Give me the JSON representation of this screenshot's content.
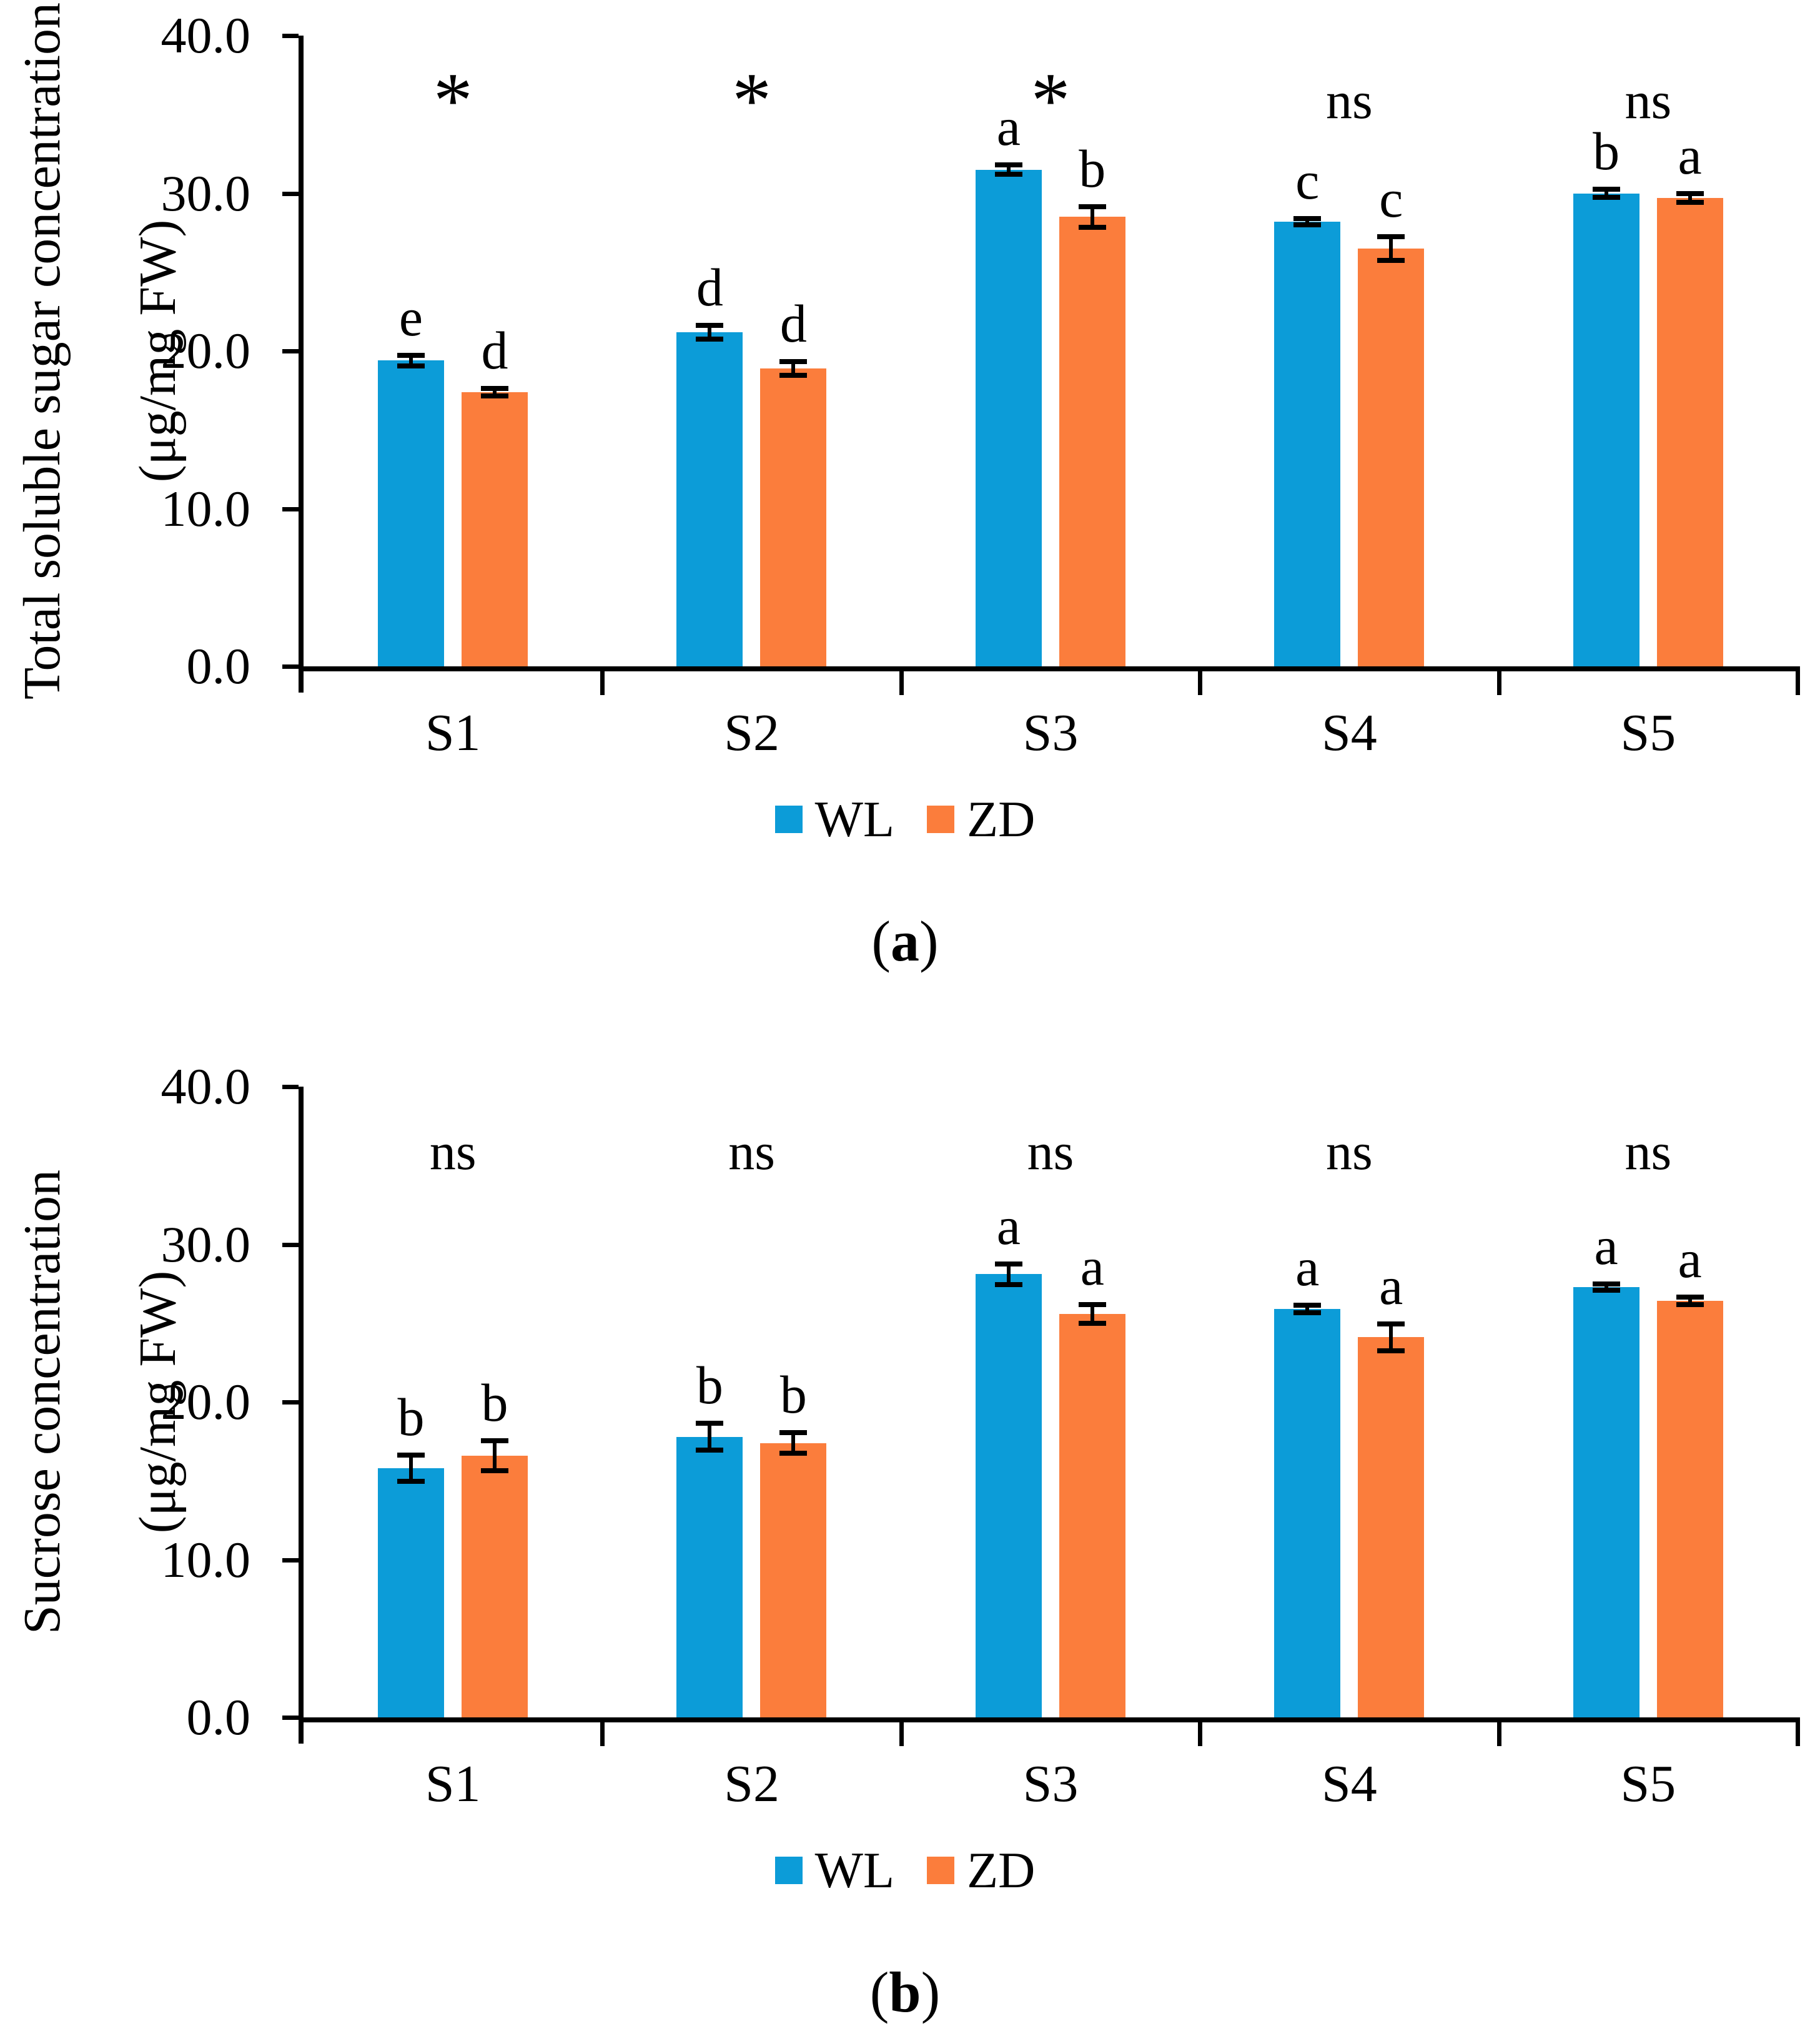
{
  "colors": {
    "wl_blue": "#0c9cd8",
    "zd_orange": "#fb7d3c",
    "axis_black": "#000000",
    "background": "#ffffff"
  },
  "figure_labels": {
    "panel_a": {
      "open": "(",
      "letter": "a",
      "close": ")"
    },
    "panel_b": {
      "open": "(",
      "letter": "b",
      "close": ")"
    }
  },
  "chart_data": [
    {
      "panel": "a",
      "type": "bar",
      "ylabel": "Total soluble sugar concentration",
      "ylabel_units": "(μg/mg FW)",
      "categories": [
        "S1",
        "S2",
        "S3",
        "S4",
        "S5"
      ],
      "ylim": [
        0,
        40
      ],
      "ytick_labels": [
        "0.0",
        "10.0",
        "20.0",
        "30.0",
        "40.0"
      ],
      "grid": false,
      "legend_position": "bottom",
      "series": [
        {
          "name": "WL",
          "color": "#0c9cd8",
          "values": [
            19.4,
            21.2,
            31.5,
            28.2,
            30.0
          ],
          "errors": [
            0.5,
            0.6,
            0.45,
            0.35,
            0.4
          ],
          "letters": [
            "e",
            "d",
            "a",
            "c",
            "b"
          ]
        },
        {
          "name": "ZD",
          "color": "#fb7d3c",
          "values": [
            17.4,
            18.9,
            28.5,
            26.5,
            29.7
          ],
          "errors": [
            0.4,
            0.6,
            0.8,
            0.9,
            0.45
          ],
          "letters": [
            "d",
            "d",
            "b",
            "c",
            "a"
          ]
        }
      ],
      "significance_by_group": [
        "*",
        "*",
        "*",
        "ns",
        "ns"
      ]
    },
    {
      "panel": "b",
      "type": "bar",
      "ylabel": "Sucrose concentration",
      "ylabel_units": "(μg/mg FW)",
      "categories": [
        "S1",
        "S2",
        "S3",
        "S4",
        "S5"
      ],
      "ylim": [
        0,
        40
      ],
      "ytick_labels": [
        "0.0",
        "10.0",
        "20.0",
        "30.0",
        "40.0"
      ],
      "grid": false,
      "legend_position": "bottom",
      "series": [
        {
          "name": "WL",
          "color": "#0c9cd8",
          "values": [
            15.8,
            17.8,
            28.1,
            25.9,
            27.3
          ],
          "errors": [
            1.0,
            1.0,
            0.8,
            0.4,
            0.35
          ],
          "letters": [
            "b",
            "b",
            "a",
            "a",
            "a"
          ]
        },
        {
          "name": "ZD",
          "color": "#fb7d3c",
          "values": [
            16.6,
            17.4,
            25.6,
            24.1,
            26.4
          ],
          "errors": [
            1.1,
            0.8,
            0.75,
            1.0,
            0.4
          ],
          "letters": [
            "b",
            "b",
            "a",
            "a",
            "a"
          ]
        }
      ],
      "significance_by_group": [
        "ns",
        "ns",
        "ns",
        "ns",
        "ns"
      ]
    }
  ]
}
